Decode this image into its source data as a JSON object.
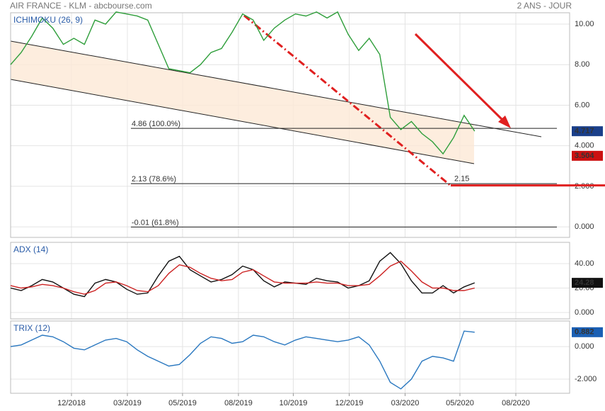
{
  "header": {
    "title": "AIR FRANCE - KLM - abcbourse.com",
    "period": "2 ANS - JOUR"
  },
  "chart_data": [
    {
      "type": "line",
      "label": "ICHIMOKU (26, 9)",
      "grid": true,
      "xlim": [
        0,
        53
      ],
      "ylim": [
        -0.52,
        10.56
      ],
      "yticks": [
        {
          "value": 10,
          "label": "10.00"
        },
        {
          "value": 8,
          "label": "8.00"
        },
        {
          "value": 6,
          "label": "6.00"
        },
        {
          "value": 4,
          "label": "4.000"
        },
        {
          "value": 2,
          "label": "2.000"
        },
        {
          "value": 0,
          "label": "0.000"
        }
      ],
      "x": [
        0,
        1,
        2,
        3,
        4,
        5,
        6,
        7,
        8,
        9,
        10,
        11,
        12,
        13,
        14,
        15,
        16,
        17,
        18,
        19,
        20,
        21,
        22,
        23,
        24,
        25,
        26,
        27,
        28,
        29,
        30,
        31,
        32,
        33,
        34,
        35,
        36,
        37,
        38,
        39,
        40,
        41,
        42,
        43,
        44
      ],
      "series": [
        {
          "color": "#2e9e3a",
          "values": [
            8.0,
            8.6,
            9.4,
            10.3,
            9.8,
            9.0,
            9.3,
            9.0,
            10.2,
            10.0,
            10.6,
            10.5,
            10.4,
            10.2,
            9.0,
            7.8,
            7.7,
            7.6,
            8.0,
            8.6,
            8.8,
            9.6,
            10.5,
            10.2,
            9.2,
            9.8,
            10.2,
            10.5,
            10.4,
            10.6,
            10.3,
            10.6,
            9.5,
            8.7,
            9.3,
            8.5,
            5.4,
            4.8,
            5.2,
            4.6,
            4.2,
            3.6,
            4.4,
            5.5,
            4.72
          ]
        }
      ],
      "annotations": [
        {
          "value": 4.86,
          "label": "4.86  (100.0%)"
        },
        {
          "value": 2.13,
          "label": "2.13  (78.6%)"
        },
        {
          "value": -0.01,
          "label": "-0.01  (61.8%)"
        }
      ],
      "target": {
        "value": 2.15,
        "color": "#e02020"
      },
      "tags": [
        {
          "value": 4.717,
          "color": "#1a3f8a"
        },
        {
          "value": 3.504,
          "color": "#cc1111"
        }
      ]
    },
    {
      "type": "line",
      "label": "ADX (14)",
      "grid": true,
      "xlim": [
        0,
        53
      ],
      "ylim": [
        -5.2,
        57.4
      ],
      "yticks": [
        {
          "value": 40,
          "label": "40.00"
        },
        {
          "value": 20,
          "label": "20.00"
        },
        {
          "value": 0,
          "label": "0.000"
        }
      ],
      "x": [
        0,
        1,
        2,
        3,
        4,
        5,
        6,
        7,
        8,
        9,
        10,
        11,
        12,
        13,
        14,
        15,
        16,
        17,
        18,
        19,
        20,
        21,
        22,
        23,
        24,
        25,
        26,
        27,
        28,
        29,
        30,
        31,
        32,
        33,
        34,
        35,
        36,
        37,
        38,
        39,
        40,
        41,
        42,
        43,
        44
      ],
      "series": [
        {
          "color": "#111111",
          "values": [
            20,
            18,
            22,
            27,
            25,
            20,
            15,
            13,
            24,
            27,
            25,
            19,
            15,
            16,
            30,
            42,
            46,
            35,
            30,
            25,
            27,
            31,
            38,
            35,
            26,
            21,
            25,
            24,
            23,
            28,
            26,
            25,
            20,
            22,
            26,
            42,
            49,
            40,
            26,
            16,
            16,
            22,
            16,
            21,
            24.28
          ]
        },
        {
          "color": "#cc2222",
          "values": [
            22,
            20,
            21,
            23,
            22,
            20,
            17,
            15,
            18,
            24,
            25,
            22,
            18,
            17,
            22,
            32,
            39,
            37,
            32,
            28,
            26,
            27,
            33,
            35,
            30,
            25,
            24,
            24,
            24,
            25,
            24,
            24,
            22,
            22,
            23,
            30,
            38,
            42,
            34,
            25,
            20,
            20,
            18,
            18,
            20
          ]
        }
      ],
      "tags": [
        {
          "value": 24.28,
          "color": "#111111"
        }
      ]
    },
    {
      "type": "line",
      "label": "TRIX (12)",
      "grid": true,
      "xlim": [
        0,
        53
      ],
      "ylim": [
        -2.87,
        1.57
      ],
      "yticks": [
        {
          "value": 0,
          "label": "0.000"
        },
        {
          "value": -2,
          "label": "-2.000"
        }
      ],
      "x": [
        0,
        1,
        2,
        3,
        4,
        5,
        6,
        7,
        8,
        9,
        10,
        11,
        12,
        13,
        14,
        15,
        16,
        17,
        18,
        19,
        20,
        21,
        22,
        23,
        24,
        25,
        26,
        27,
        28,
        29,
        30,
        31,
        32,
        33,
        34,
        35,
        36,
        37,
        38,
        39,
        40,
        41,
        42,
        43,
        44
      ],
      "xticks": [
        {
          "value": 5.77,
          "label": "12/2018"
        },
        {
          "value": 11.07,
          "label": "03/2019"
        },
        {
          "value": 16.3,
          "label": "05/2019"
        },
        {
          "value": 21.6,
          "label": "08/2019"
        },
        {
          "value": 26.8,
          "label": "10/2019"
        },
        {
          "value": 32.1,
          "label": "12/2019"
        },
        {
          "value": 37.4,
          "label": "03/2020"
        },
        {
          "value": 42.6,
          "label": "05/2020"
        },
        {
          "value": 47.9,
          "label": "08/2020"
        }
      ],
      "series": [
        {
          "color": "#2a78c0",
          "values": [
            0,
            0.1,
            0.4,
            0.7,
            0.6,
            0.3,
            -0.1,
            -0.2,
            0.1,
            0.4,
            0.5,
            0.3,
            -0.2,
            -0.6,
            -0.9,
            -1.2,
            -1.1,
            -0.5,
            0.2,
            0.6,
            0.5,
            0.2,
            0.3,
            0.7,
            0.6,
            0.3,
            0.1,
            0.4,
            0.6,
            0.5,
            0.4,
            0.3,
            0.4,
            0.6,
            0.1,
            -0.9,
            -2.2,
            -2.6,
            -2.0,
            -0.9,
            -0.6,
            -0.7,
            -0.9,
            0.95,
            0.882
          ]
        }
      ],
      "tags": [
        {
          "value": 0.882,
          "color": "#1a5fb4"
        }
      ]
    }
  ]
}
